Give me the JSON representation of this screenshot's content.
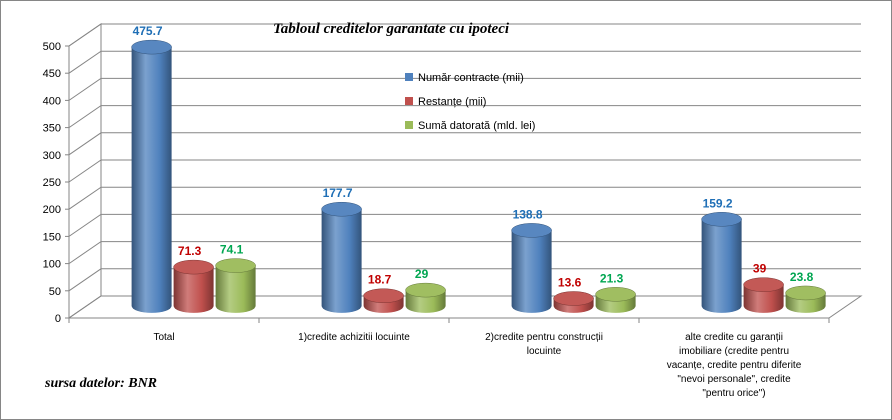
{
  "chart_data": {
    "type": "bar",
    "title": "Tabloul creditelor garantate cu ipoteci",
    "source_note": "sursa datelor: BNR",
    "categories": [
      [
        "Total"
      ],
      [
        "1)credite achizitii locuinte"
      ],
      [
        "2)credite pentru construcții",
        "locuinte"
      ],
      [
        "alte credite cu garanții",
        "imobiliare (credite pentru",
        "vacanțe, credite pentru diferite",
        "\"nevoi personale\", credite",
        "\"pentru orice\")"
      ]
    ],
    "series": [
      {
        "name": "Număr contracte (mii)",
        "values": [
          475.7,
          177.7,
          138.8,
          159.2
        ],
        "labels": [
          "475.7",
          "177.7",
          "138.8",
          "159.2"
        ],
        "color": "#4F81BD",
        "label_color": "#1F6FB6"
      },
      {
        "name": "Restanțe (mii)",
        "values": [
          71.3,
          18.7,
          13.6,
          39
        ],
        "labels": [
          "71.3",
          "18.7",
          "13.6",
          "39"
        ],
        "color": "#C0504D",
        "label_color": "#C00000"
      },
      {
        "name": "Sumă datorată (mld. lei)",
        "values": [
          74.1,
          29,
          21.3,
          23.8
        ],
        "labels": [
          "74.1",
          "29",
          "21.3",
          "23.8"
        ],
        "color": "#9BBB59",
        "label_color": "#00A651"
      }
    ],
    "yticks": [
      "0",
      "50",
      "100",
      "150",
      "200",
      "250",
      "300",
      "350",
      "400",
      "450",
      "500"
    ],
    "ylim": [
      0,
      500
    ],
    "grid": true,
    "legend_position": "center-top"
  }
}
